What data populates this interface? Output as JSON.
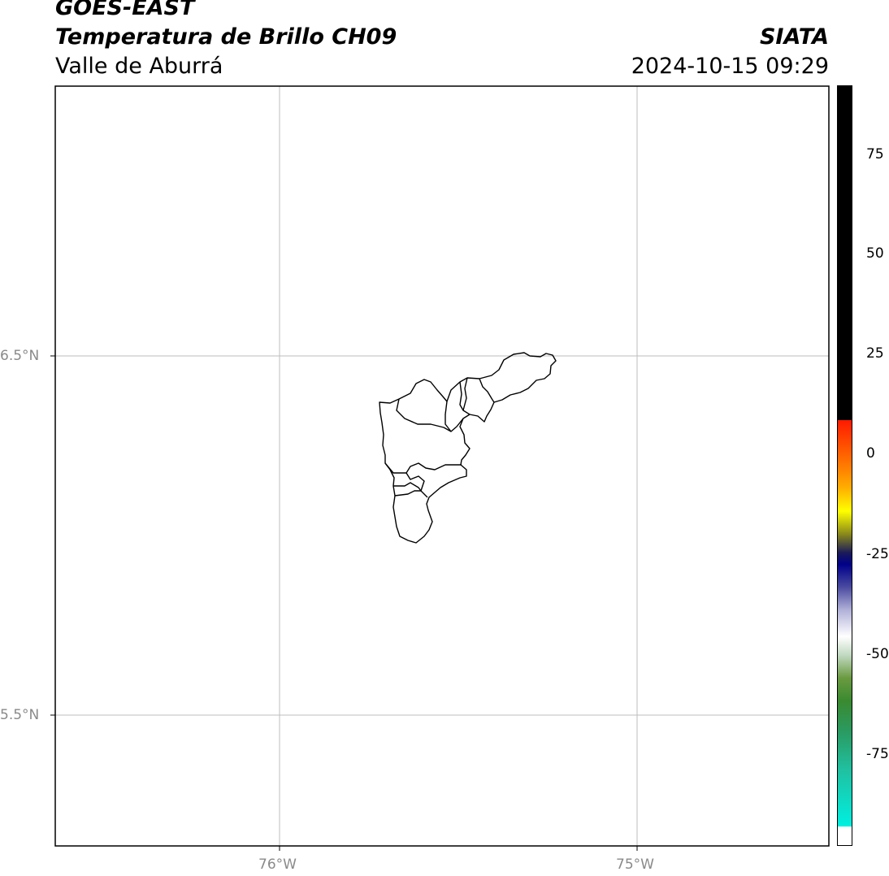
{
  "header": {
    "title_line1": "GOES-EAST",
    "title_line2": "Temperatura de Brillo CH09",
    "subtitle": "Valle de Aburrá",
    "org": "SIATA",
    "datetime": "2024-10-15 09:29"
  },
  "map": {
    "region": "Valle de Aburrá",
    "gridlines": true,
    "lat_ticks": [
      {
        "label": "6.5°N",
        "value": 6.5
      },
      {
        "label": "5.5°N",
        "value": 5.5
      }
    ],
    "lon_ticks": [
      {
        "label": "76°W",
        "value": -76
      },
      {
        "label": "75°W",
        "value": -75
      }
    ]
  },
  "colorbar": {
    "ticks": [
      "75",
      "50",
      "25",
      "0",
      "-25",
      "-50",
      "-75"
    ],
    "tick_values": [
      75,
      50,
      25,
      0,
      -25,
      -50,
      -75
    ],
    "range": [
      -93,
      92
    ]
  }
}
